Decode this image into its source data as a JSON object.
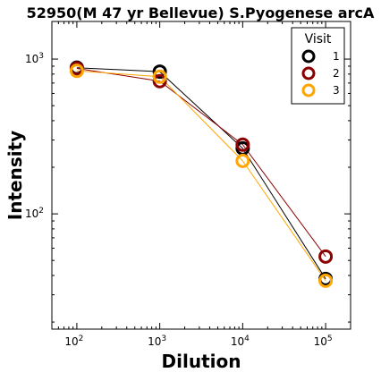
{
  "chart_data": {
    "type": "line",
    "title": "52950(M 47 yr Bellevue) S.Pyogenese arcA",
    "xlabel": "Dilution",
    "ylabel": "Intensity",
    "x_scale": "log",
    "y_scale": "log",
    "xlim": [
      50,
      200000
    ],
    "ylim": [
      18,
      1750
    ],
    "x_ticks": [
      {
        "value": 100,
        "base": "10",
        "exp": "2"
      },
      {
        "value": 1000,
        "base": "10",
        "exp": "3"
      },
      {
        "value": 10000,
        "base": "10",
        "exp": "4"
      },
      {
        "value": 100000,
        "base": "10",
        "exp": "5"
      }
    ],
    "y_ticks": [
      {
        "value": 100,
        "base": "10",
        "exp": "2"
      },
      {
        "value": 1000,
        "base": "10",
        "exp": "3"
      }
    ],
    "grid": false,
    "legend": {
      "title": "Visit",
      "position": "top-right"
    },
    "x": [
      100,
      1000,
      10000,
      100000
    ],
    "series": [
      {
        "name": "1",
        "color": "#000000",
        "values": [
          880,
          830,
          265,
          38
        ]
      },
      {
        "name": "2",
        "color": "#8b0000",
        "values": [
          870,
          720,
          280,
          53
        ]
      },
      {
        "name": "3",
        "color": "#ffa500",
        "values": [
          840,
          770,
          220,
          37
        ]
      }
    ]
  }
}
